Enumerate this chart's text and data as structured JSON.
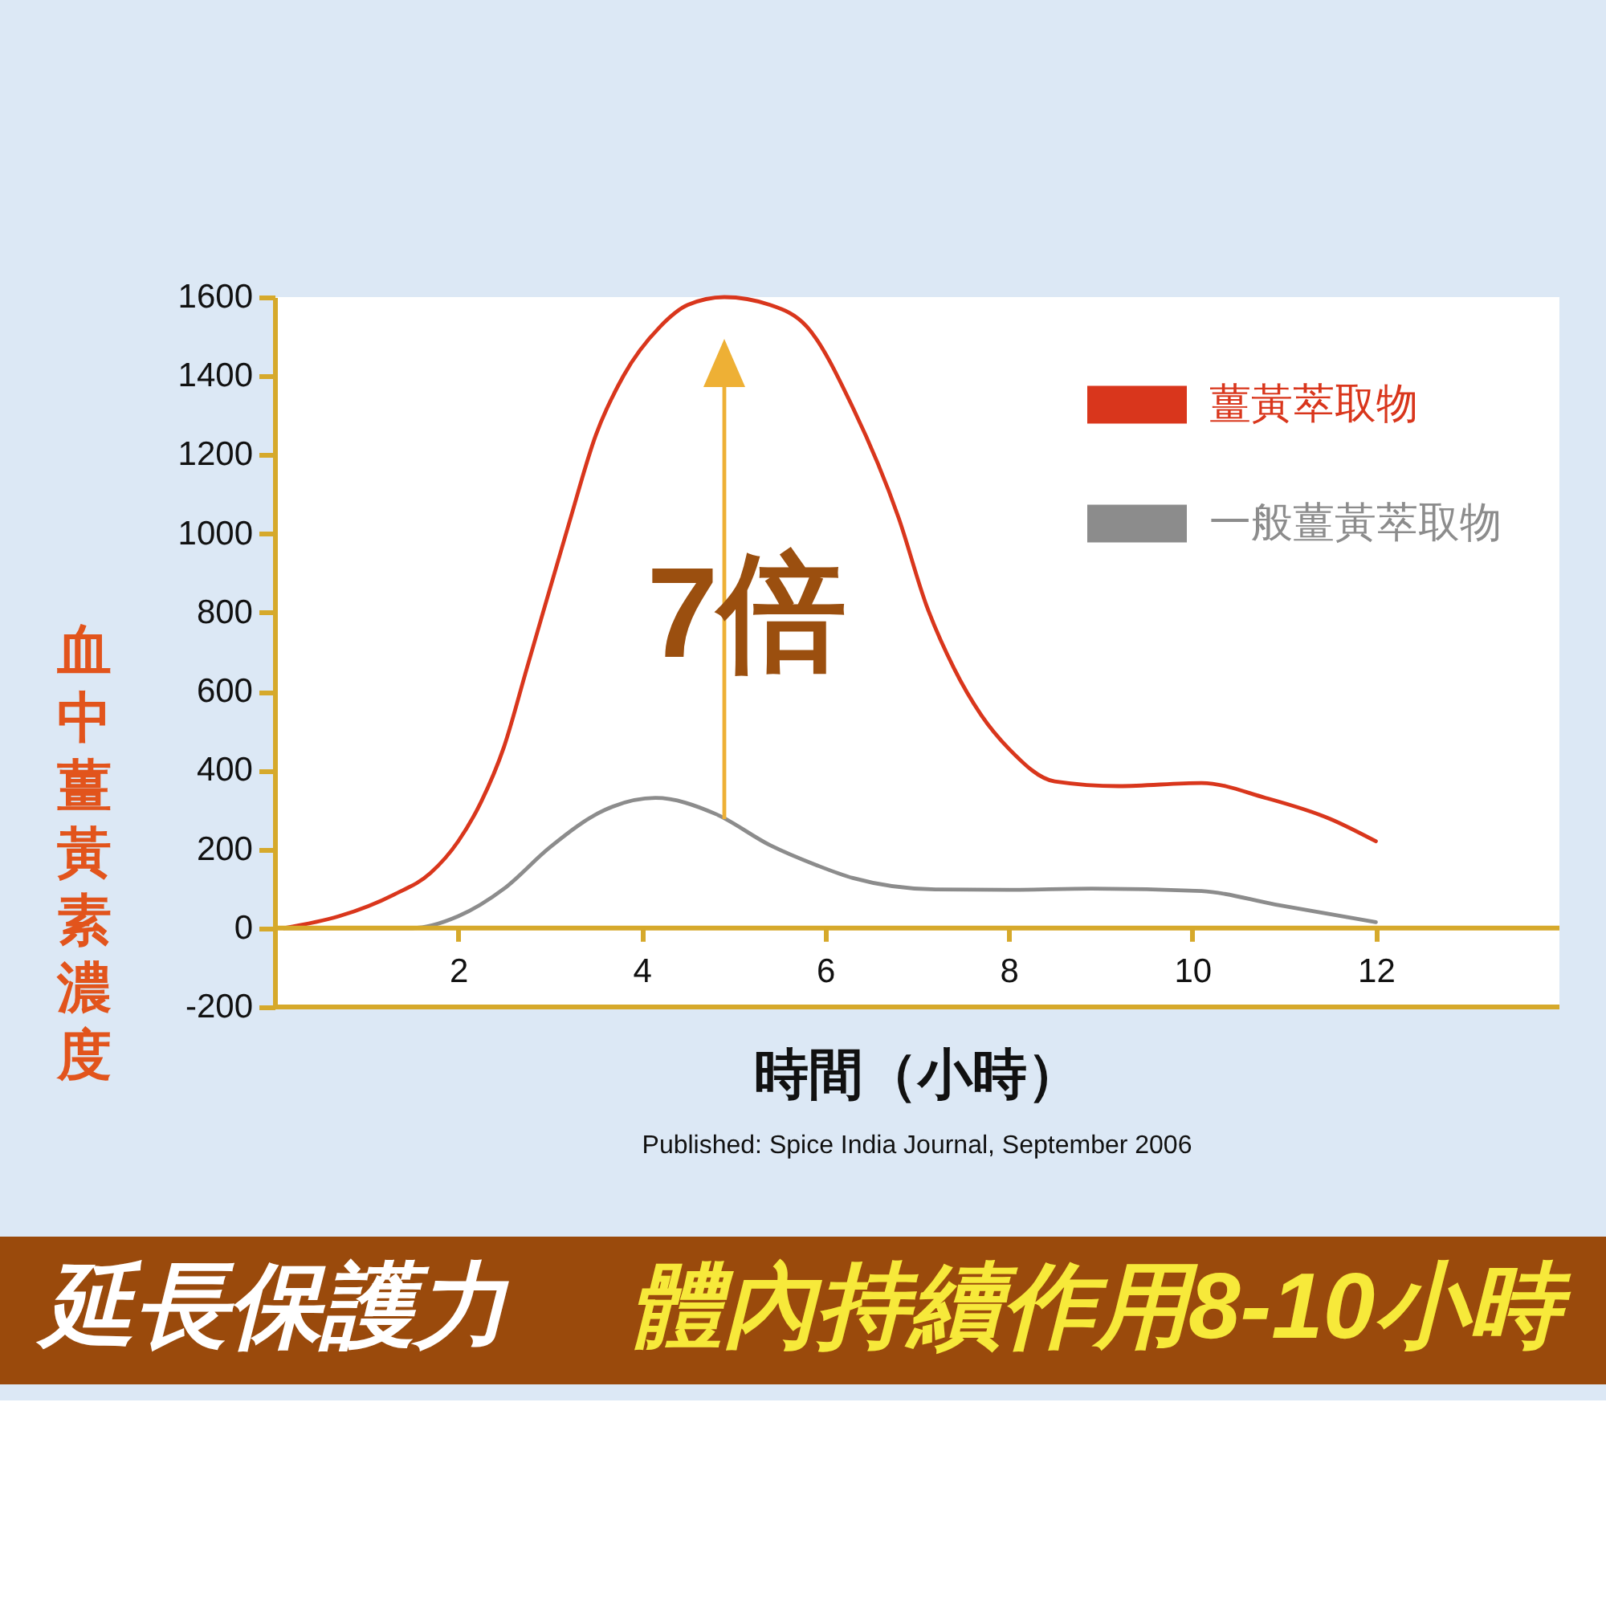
{
  "chart_data": {
    "type": "line",
    "xlabel": "時間（小時）",
    "ylabel": "血中薑黃素濃度",
    "annotations": [
      {
        "text": "7倍",
        "x": 4.9,
        "y": 1600
      },
      "Published: Spice India Journal, September 2006",
      "延長保護力",
      "體內持續作用8-10小時"
    ],
    "xlim": [
      0,
      14
    ],
    "xticks": [
      2,
      4,
      6,
      8,
      10,
      12
    ],
    "ylim": [
      -200,
      1600
    ],
    "yticks": [
      -200,
      0,
      200,
      400,
      600,
      800,
      1000,
      1200,
      1400,
      1600
    ],
    "ref_lines": [
      {
        "axis": "y",
        "value": 0,
        "color": "#d6a92b"
      }
    ],
    "legend": "top right",
    "series": [
      {
        "name": "薑黃萃取物",
        "color": "#d9361c",
        "x": [
          0.1,
          0.7,
          1.3,
          1.7,
          2.0,
          2.25,
          2.5,
          2.75,
          3.2,
          3.5,
          3.8,
          4.2,
          4.5,
          4.9,
          5.4,
          5.8,
          6.3,
          6.8,
          7.1,
          7.4,
          7.7,
          8.0,
          8.5,
          9.2,
          10.1,
          10.8,
          11.5,
          12.0
        ],
        "values": [
          0,
          30,
          85,
          140,
          220,
          320,
          460,
          660,
          1020,
          1250,
          1400,
          1525,
          1580,
          1600,
          1580,
          1525,
          1320,
          1040,
          820,
          660,
          540,
          455,
          372,
          360,
          368,
          330,
          277,
          220
        ]
      },
      {
        "name": "一般薑黃萃取物",
        "color": "#8c8c8c",
        "x": [
          0.1,
          1.5,
          2.0,
          2.5,
          3.0,
          3.6,
          4.15,
          4.8,
          5.4,
          5.9,
          6.3,
          7.2,
          8.0,
          8.9,
          10.1,
          10.9,
          12.0
        ],
        "values": [
          0,
          0,
          30,
          100,
          205,
          300,
          330,
          290,
          210,
          160,
          127,
          98,
          97,
          100,
          94,
          60,
          15
        ]
      }
    ]
  }
}
